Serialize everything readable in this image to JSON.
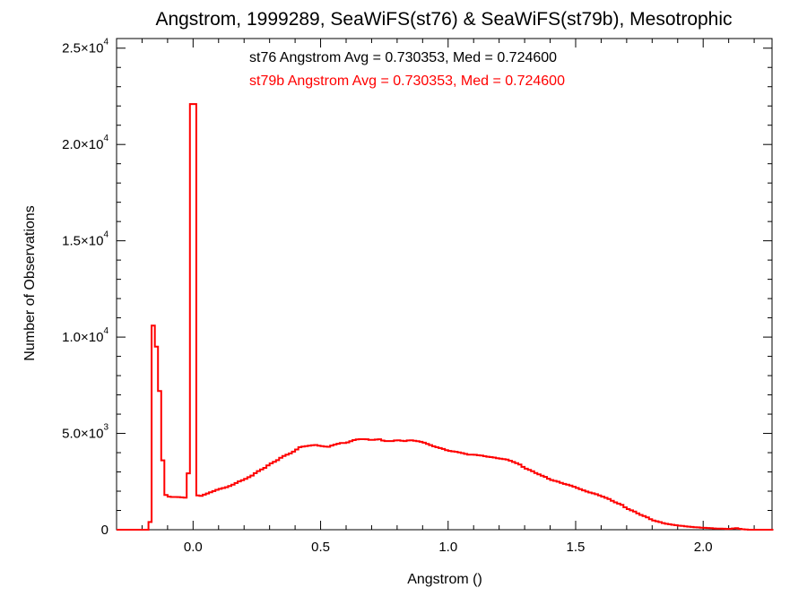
{
  "chart_data": {
    "type": "histogram",
    "title": "Angstrom, 1999289, SeaWiFS(st76) & SeaWiFS(st79b), Mesotrophic",
    "xlabel": "Angstrom ()",
    "ylabel": "Number of Observations",
    "xlim": [
      -0.3,
      2.27
    ],
    "ylim": [
      0,
      25500
    ],
    "bin_width": 0.0125,
    "grid": false,
    "x_ticks": [
      {
        "value": 0.0,
        "label": "0.0"
      },
      {
        "value": 0.5,
        "label": "0.5"
      },
      {
        "value": 1.0,
        "label": "1.0"
      },
      {
        "value": 1.5,
        "label": "1.5"
      },
      {
        "value": 2.0,
        "label": "2.0"
      }
    ],
    "y_ticks": [
      {
        "value": 0,
        "mant": "0",
        "exp": ""
      },
      {
        "value": 5000,
        "mant": "5.0×10",
        "exp": "3"
      },
      {
        "value": 10000,
        "mant": "1.0×10",
        "exp": "4"
      },
      {
        "value": 15000,
        "mant": "1.5×10",
        "exp": "4"
      },
      {
        "value": 20000,
        "mant": "2.0×10",
        "exp": "4"
      },
      {
        "value": 25000,
        "mant": "2.5×10",
        "exp": "4"
      }
    ],
    "annotations": [
      {
        "text": "st76 Angstrom Avg = 0.730353, Med = 0.724600",
        "color": "#000000"
      },
      {
        "text": "st79b Angstrom Avg = 0.730353, Med = 0.724600",
        "color": "#ff0000"
      }
    ],
    "series": [
      {
        "name": "st76",
        "color": "#000000"
      },
      {
        "name": "st79b",
        "color": "#ff0000"
      }
    ],
    "points": [
      [
        -0.17,
        400
      ],
      [
        -0.16,
        10600
      ],
      [
        -0.15,
        8800
      ],
      [
        -0.14,
        9500
      ],
      [
        -0.13,
        7200
      ],
      [
        -0.12,
        3600
      ],
      [
        -0.11,
        1800
      ],
      [
        -0.09,
        1700
      ],
      [
        -0.06,
        1700
      ],
      [
        -0.02,
        1650
      ],
      [
        0.0,
        22100
      ],
      [
        0.01,
        1800
      ],
      [
        0.03,
        1750
      ],
      [
        0.05,
        1850
      ],
      [
        0.08,
        2000
      ],
      [
        0.1,
        2100
      ],
      [
        0.13,
        2200
      ],
      [
        0.15,
        2300
      ],
      [
        0.18,
        2500
      ],
      [
        0.2,
        2600
      ],
      [
        0.23,
        2800
      ],
      [
        0.25,
        3000
      ],
      [
        0.28,
        3200
      ],
      [
        0.3,
        3400
      ],
      [
        0.33,
        3600
      ],
      [
        0.35,
        3800
      ],
      [
        0.38,
        3950
      ],
      [
        0.4,
        4100
      ],
      [
        0.42,
        4300
      ],
      [
        0.45,
        4350
      ],
      [
        0.48,
        4400
      ],
      [
        0.5,
        4350
      ],
      [
        0.53,
        4300
      ],
      [
        0.55,
        4400
      ],
      [
        0.58,
        4500
      ],
      [
        0.6,
        4500
      ],
      [
        0.63,
        4650
      ],
      [
        0.65,
        4700
      ],
      [
        0.68,
        4700
      ],
      [
        0.7,
        4650
      ],
      [
        0.73,
        4700
      ],
      [
        0.75,
        4600
      ],
      [
        0.78,
        4600
      ],
      [
        0.8,
        4650
      ],
      [
        0.83,
        4600
      ],
      [
        0.85,
        4650
      ],
      [
        0.88,
        4600
      ],
      [
        0.9,
        4550
      ],
      [
        0.93,
        4400
      ],
      [
        0.95,
        4300
      ],
      [
        0.98,
        4200
      ],
      [
        1.0,
        4100
      ],
      [
        1.03,
        4050
      ],
      [
        1.05,
        4000
      ],
      [
        1.08,
        3900
      ],
      [
        1.1,
        3900
      ],
      [
        1.13,
        3850
      ],
      [
        1.15,
        3800
      ],
      [
        1.18,
        3750
      ],
      [
        1.2,
        3700
      ],
      [
        1.23,
        3650
      ],
      [
        1.25,
        3550
      ],
      [
        1.28,
        3400
      ],
      [
        1.3,
        3200
      ],
      [
        1.33,
        3050
      ],
      [
        1.35,
        2900
      ],
      [
        1.38,
        2750
      ],
      [
        1.4,
        2600
      ],
      [
        1.43,
        2500
      ],
      [
        1.45,
        2400
      ],
      [
        1.48,
        2300
      ],
      [
        1.5,
        2200
      ],
      [
        1.53,
        2050
      ],
      [
        1.55,
        1950
      ],
      [
        1.58,
        1850
      ],
      [
        1.6,
        1750
      ],
      [
        1.63,
        1600
      ],
      [
        1.65,
        1450
      ],
      [
        1.68,
        1300
      ],
      [
        1.7,
        1100
      ],
      [
        1.73,
        950
      ],
      [
        1.75,
        800
      ],
      [
        1.78,
        650
      ],
      [
        1.8,
        500
      ],
      [
        1.83,
        400
      ],
      [
        1.85,
        320
      ],
      [
        1.88,
        260
      ],
      [
        1.9,
        220
      ],
      [
        1.93,
        180
      ],
      [
        1.95,
        150
      ],
      [
        1.98,
        120
      ],
      [
        2.0,
        100
      ],
      [
        2.03,
        80
      ],
      [
        2.05,
        60
      ],
      [
        2.08,
        50
      ],
      [
        2.1,
        40
      ],
      [
        2.13,
        80
      ],
      [
        2.15,
        30
      ],
      [
        2.18,
        0
      ]
    ]
  }
}
